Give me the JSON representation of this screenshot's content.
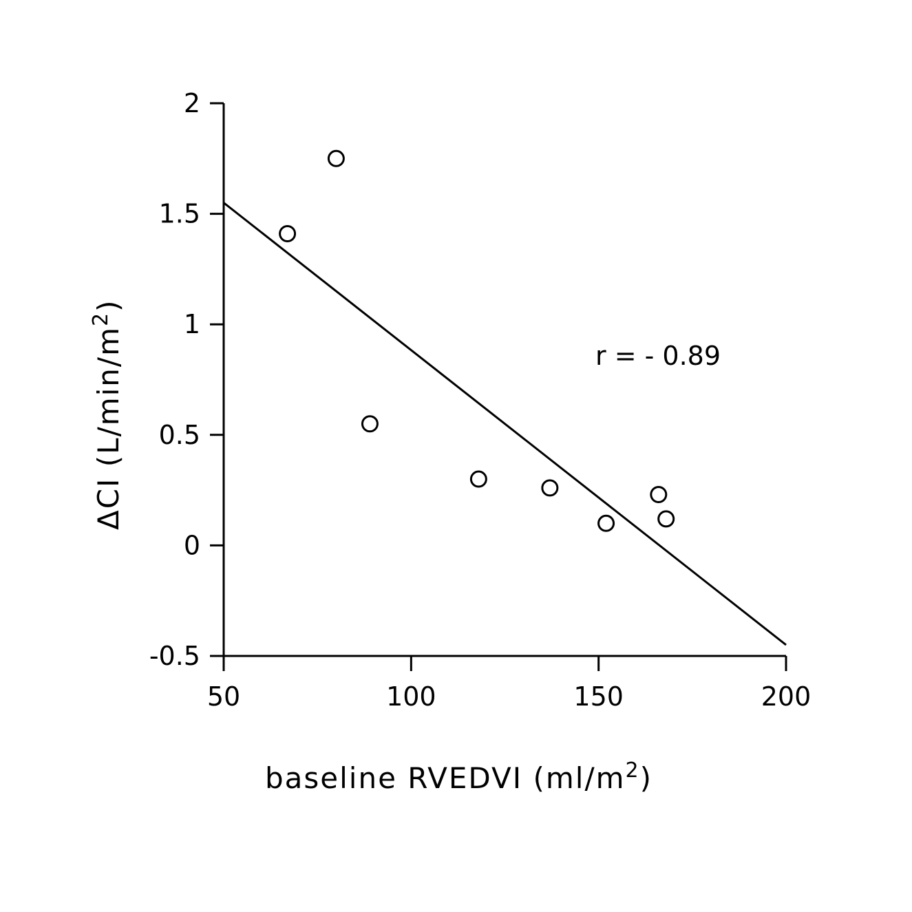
{
  "chart_data": {
    "type": "scatter",
    "x": [
      67,
      80,
      89,
      118,
      137,
      152,
      166,
      168
    ],
    "y": [
      1.41,
      1.75,
      0.55,
      0.3,
      0.26,
      0.1,
      0.23,
      0.12
    ],
    "x_ticks": [
      "50",
      "100",
      "150",
      "200"
    ],
    "y_ticks": [
      "-0.5",
      "0",
      "0.5",
      "1",
      "1.5",
      "2"
    ],
    "xlim": [
      50,
      200
    ],
    "ylim": [
      -0.5,
      2
    ],
    "xlabel": "baseline RVEDVI (ml/m",
    "xlabel_sup": "2",
    "xlabel_end": ")",
    "ylabel": "ΔCI (L/min/m",
    "ylabel_sup": "2",
    "ylabel_end": ")",
    "fit_line": {
      "x": [
        50,
        200
      ],
      "y": [
        1.55,
        -0.45
      ]
    },
    "annotation": "r = - 0.89",
    "grid": false,
    "legend": "none"
  }
}
